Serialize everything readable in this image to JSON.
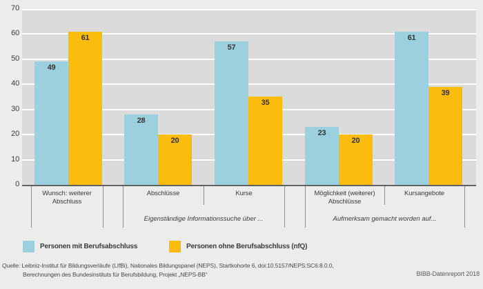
{
  "colors": {
    "series_blue": "#9CD0DF",
    "series_yellow": "#FBBC0D",
    "plot_background": "#DBDBDB",
    "page_background": "#ECECEA",
    "gridline": "#FFFFFF"
  },
  "chart_data": {
    "type": "bar",
    "title": "",
    "xlabel": "",
    "ylabel": "",
    "ylim": [
      0,
      70
    ],
    "yticks": [
      0,
      10,
      20,
      30,
      40,
      50,
      60,
      70
    ],
    "grid": true,
    "legend_position": "bottom",
    "categories": [
      "Wunsch: weiterer Abschluss",
      "Abschlüsse",
      "Kurse",
      "Möglichkeit (weiterer) Abschlüsse",
      "Kursangebote"
    ],
    "group_labels": [
      "Eigenständige Informationssuche über ...",
      "Aufmerksam gemacht worden auf..."
    ],
    "series": [
      {
        "name": "Personen mit Berufsabschluss",
        "color": "#9CD0DF",
        "values": [
          49,
          28,
          57,
          23,
          61
        ]
      },
      {
        "name": "Personen ohne Berufsabschluss (nfQ)",
        "color": "#FBBC0D",
        "values": [
          61,
          20,
          35,
          20,
          39
        ]
      }
    ]
  },
  "footer": {
    "source_line1": "Quelle: Leibniz-Institut für Bildungsverläufe (LIfBi), Nationales Bildungspanel (NEPS), Startkohorte 6, doi:10.5157/NEPS:SC6:8.0.0,",
    "source_line2": "Berechnungen des Bundesinstituts für Berufsbildung, Projekt „NEPS-BB“",
    "branding": "BIBB-Datenreport 2018"
  }
}
